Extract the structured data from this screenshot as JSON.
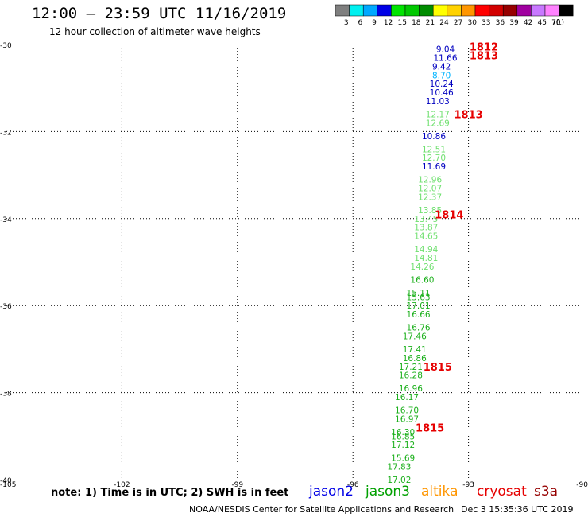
{
  "header": {
    "title": "12:00 — 23:59 UTC 11/16/2019",
    "subtitle": "12 hour collection of altimeter wave heights"
  },
  "colorbar": {
    "bins": [
      {
        "label": "3",
        "color": "#7f7f7f"
      },
      {
        "label": "6",
        "color": "#00f0f0"
      },
      {
        "label": "9",
        "color": "#00a8ff"
      },
      {
        "label": "12",
        "color": "#0000e6"
      },
      {
        "label": "15",
        "color": "#00e400"
      },
      {
        "label": "18",
        "color": "#00c800"
      },
      {
        "label": "21",
        "color": "#008c00"
      },
      {
        "label": "24",
        "color": "#ffff00"
      },
      {
        "label": "27",
        "color": "#ffd200"
      },
      {
        "label": "30",
        "color": "#ff9600"
      },
      {
        "label": "33",
        "color": "#ff0000"
      },
      {
        "label": "36",
        "color": "#d20000"
      },
      {
        "label": "39",
        "color": "#960000"
      },
      {
        "label": "42",
        "color": "#a000a0"
      },
      {
        "label": "45",
        "color": "#c878ff"
      },
      {
        "label": "70",
        "color": "#ff82ff"
      },
      {
        "label": "",
        "color": "#000000"
      }
    ],
    "unit": "(ft)"
  },
  "chart_data": {
    "type": "scatter",
    "x_ticks": [
      -105,
      -102,
      -99,
      -96,
      -93,
      -90
    ],
    "y_ticks": [
      -30,
      -32,
      -34,
      -36,
      -38,
      -40
    ],
    "xlim": [
      -105,
      -90
    ],
    "ylim": [
      -40,
      -30
    ],
    "grid": true,
    "points": [
      {
        "x": -93.6,
        "y": -30.1,
        "value": "9.04",
        "color": "#0000c0"
      },
      {
        "x": -93.6,
        "y": -30.3,
        "value": "11.66",
        "color": "#0000c0"
      },
      {
        "x": -93.7,
        "y": -30.5,
        "value": "9.42",
        "color": "#0000c0"
      },
      {
        "x": -93.7,
        "y": -30.7,
        "value": "8.70",
        "color": "#00b4ff"
      },
      {
        "x": -93.7,
        "y": -30.9,
        "value": "10.24",
        "color": "#0000c0"
      },
      {
        "x": -93.7,
        "y": -31.1,
        "value": "10.46",
        "color": "#0000c0"
      },
      {
        "x": -93.8,
        "y": -31.3,
        "value": "11.03",
        "color": "#0000c0"
      },
      {
        "x": -93.8,
        "y": -31.6,
        "value": "12.17",
        "color": "#70e070"
      },
      {
        "x": -93.8,
        "y": -31.8,
        "value": "12.69",
        "color": "#70e070"
      },
      {
        "x": -93.9,
        "y": -32.1,
        "value": "10.86",
        "color": "#0000c0"
      },
      {
        "x": -93.9,
        "y": -32.4,
        "value": "12.51",
        "color": "#70e070"
      },
      {
        "x": -93.9,
        "y": -32.6,
        "value": "12.70",
        "color": "#70e070"
      },
      {
        "x": -93.9,
        "y": -32.8,
        "value": "11.69",
        "color": "#0000c0"
      },
      {
        "x": -94.0,
        "y": -33.1,
        "value": "12.96",
        "color": "#70e070"
      },
      {
        "x": -94.0,
        "y": -33.3,
        "value": "12.07",
        "color": "#70e070"
      },
      {
        "x": -94.0,
        "y": -33.5,
        "value": "12.37",
        "color": "#70e070"
      },
      {
        "x": -94.0,
        "y": -33.8,
        "value": "13.85",
        "color": "#70e070"
      },
      {
        "x": -94.1,
        "y": -34.0,
        "value": "13.45",
        "color": "#70e070"
      },
      {
        "x": -94.1,
        "y": -34.2,
        "value": "13.87",
        "color": "#70e070"
      },
      {
        "x": -94.1,
        "y": -34.4,
        "value": "14.65",
        "color": "#70e070"
      },
      {
        "x": -94.1,
        "y": -34.7,
        "value": "14.94",
        "color": "#70e070"
      },
      {
        "x": -94.1,
        "y": -34.9,
        "value": "14.81",
        "color": "#70e070"
      },
      {
        "x": -94.2,
        "y": -35.1,
        "value": "14.26",
        "color": "#70e070"
      },
      {
        "x": -94.2,
        "y": -35.4,
        "value": "16.60",
        "color": "#1cb01c"
      },
      {
        "x": -94.3,
        "y": -35.7,
        "value": "15.11",
        "color": "#1cb01c"
      },
      {
        "x": -94.3,
        "y": -35.8,
        "value": "15.63",
        "color": "#1cb01c"
      },
      {
        "x": -94.3,
        "y": -36.0,
        "value": "17.01",
        "color": "#1cb01c"
      },
      {
        "x": -94.3,
        "y": -36.2,
        "value": "16.66",
        "color": "#1cb01c"
      },
      {
        "x": -94.3,
        "y": -36.5,
        "value": "16.76",
        "color": "#1cb01c"
      },
      {
        "x": -94.4,
        "y": -36.7,
        "value": "17.46",
        "color": "#1cb01c"
      },
      {
        "x": -94.4,
        "y": -37.0,
        "value": "17.41",
        "color": "#1cb01c"
      },
      {
        "x": -94.4,
        "y": -37.2,
        "value": "16.86",
        "color": "#1cb01c"
      },
      {
        "x": -94.5,
        "y": -37.4,
        "value": "17.21",
        "color": "#1cb01c"
      },
      {
        "x": -94.5,
        "y": -37.6,
        "value": "16.28",
        "color": "#1cb01c"
      },
      {
        "x": -94.5,
        "y": -37.9,
        "value": "16.96",
        "color": "#1cb01c"
      },
      {
        "x": -94.6,
        "y": -38.1,
        "value": "16.17",
        "color": "#1cb01c"
      },
      {
        "x": -94.6,
        "y": -38.4,
        "value": "16.70",
        "color": "#1cb01c"
      },
      {
        "x": -94.6,
        "y": -38.6,
        "value": "16.97",
        "color": "#1cb01c"
      },
      {
        "x": -94.7,
        "y": -38.9,
        "value": "16.30",
        "color": "#1cb01c"
      },
      {
        "x": -94.7,
        "y": -39.0,
        "value": "16.85",
        "color": "#1cb01c"
      },
      {
        "x": -94.7,
        "y": -39.2,
        "value": "17.12",
        "color": "#1cb01c"
      },
      {
        "x": -94.7,
        "y": -39.5,
        "value": "15.69",
        "color": "#1cb01c"
      },
      {
        "x": -94.8,
        "y": -39.7,
        "value": "17.83",
        "color": "#1cb01c"
      },
      {
        "x": -94.8,
        "y": -40.0,
        "value": "17.02",
        "color": "#1cb01c"
      }
    ],
    "time_labels": [
      {
        "x": -92.6,
        "y": -30.05,
        "label": "1812"
      },
      {
        "x": -92.6,
        "y": -30.25,
        "label": "1813"
      },
      {
        "x": -93.0,
        "y": -31.6,
        "label": "1813"
      },
      {
        "x": -93.5,
        "y": -33.9,
        "label": "1814"
      },
      {
        "x": -93.8,
        "y": -37.4,
        "label": "1815"
      },
      {
        "x": -94.0,
        "y": -38.8,
        "label": "1815"
      }
    ],
    "time_label_color": "#e60000"
  },
  "legend": {
    "note": "note: 1) Time is in UTC; 2) SWH is in feet",
    "satellites": [
      {
        "name": "jason2",
        "color": "#0000e6"
      },
      {
        "name": "jason3",
        "color": "#00a000"
      },
      {
        "name": "altika",
        "color": "#ff9600"
      },
      {
        "name": "cryosat",
        "color": "#e60000"
      },
      {
        "name": "s3a",
        "color": "#960000"
      }
    ]
  },
  "footer": {
    "credit": "NOAA/NESDIS Center for Satellite Applications and Research",
    "date": "Dec  3 15:35:36 UTC 2019"
  }
}
